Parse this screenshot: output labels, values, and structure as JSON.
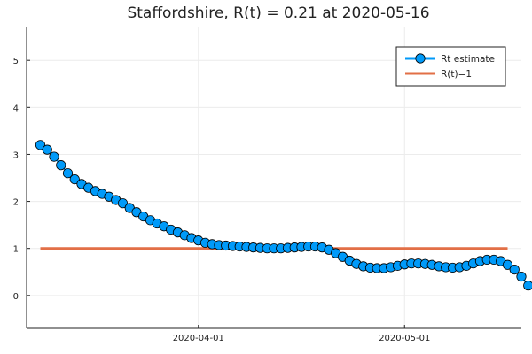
{
  "chart_data": {
    "type": "line",
    "title": "Staffordshire, R(t) = 0.21 at 2020-05-16",
    "xlabel": "",
    "ylabel": "",
    "x_start": "2020-03-09",
    "x_end": "2020-05-16",
    "xlim": [
      "2020-03-07",
      "2020-05-18"
    ],
    "ylim": [
      -0.7,
      5.7
    ],
    "yticks": [
      0,
      1,
      2,
      3,
      4,
      5
    ],
    "xticks": [
      "2020-04-01",
      "2020-05-01"
    ],
    "grid": true,
    "legend_position": "top-right",
    "series": [
      {
        "name": "Rt estimate",
        "color": "#009af9",
        "marker": "circle",
        "values": [
          3.2,
          3.1,
          2.95,
          2.77,
          2.6,
          2.47,
          2.37,
          2.29,
          2.22,
          2.16,
          2.1,
          2.03,
          1.96,
          1.86,
          1.77,
          1.68,
          1.6,
          1.53,
          1.47,
          1.4,
          1.34,
          1.28,
          1.22,
          1.17,
          1.12,
          1.09,
          1.07,
          1.06,
          1.05,
          1.04,
          1.03,
          1.02,
          1.01,
          1.0,
          1.0,
          1.0,
          1.01,
          1.02,
          1.03,
          1.04,
          1.04,
          1.02,
          0.97,
          0.9,
          0.82,
          0.74,
          0.67,
          0.62,
          0.59,
          0.58,
          0.58,
          0.6,
          0.63,
          0.66,
          0.68,
          0.68,
          0.67,
          0.65,
          0.62,
          0.6,
          0.59,
          0.6,
          0.63,
          0.68,
          0.73,
          0.76,
          0.76,
          0.73,
          0.65,
          0.55,
          0.4,
          0.21
        ]
      },
      {
        "name": "R(t)=1",
        "color": "#e26f46",
        "marker": "none",
        "values": [
          1,
          1
        ]
      }
    ]
  }
}
